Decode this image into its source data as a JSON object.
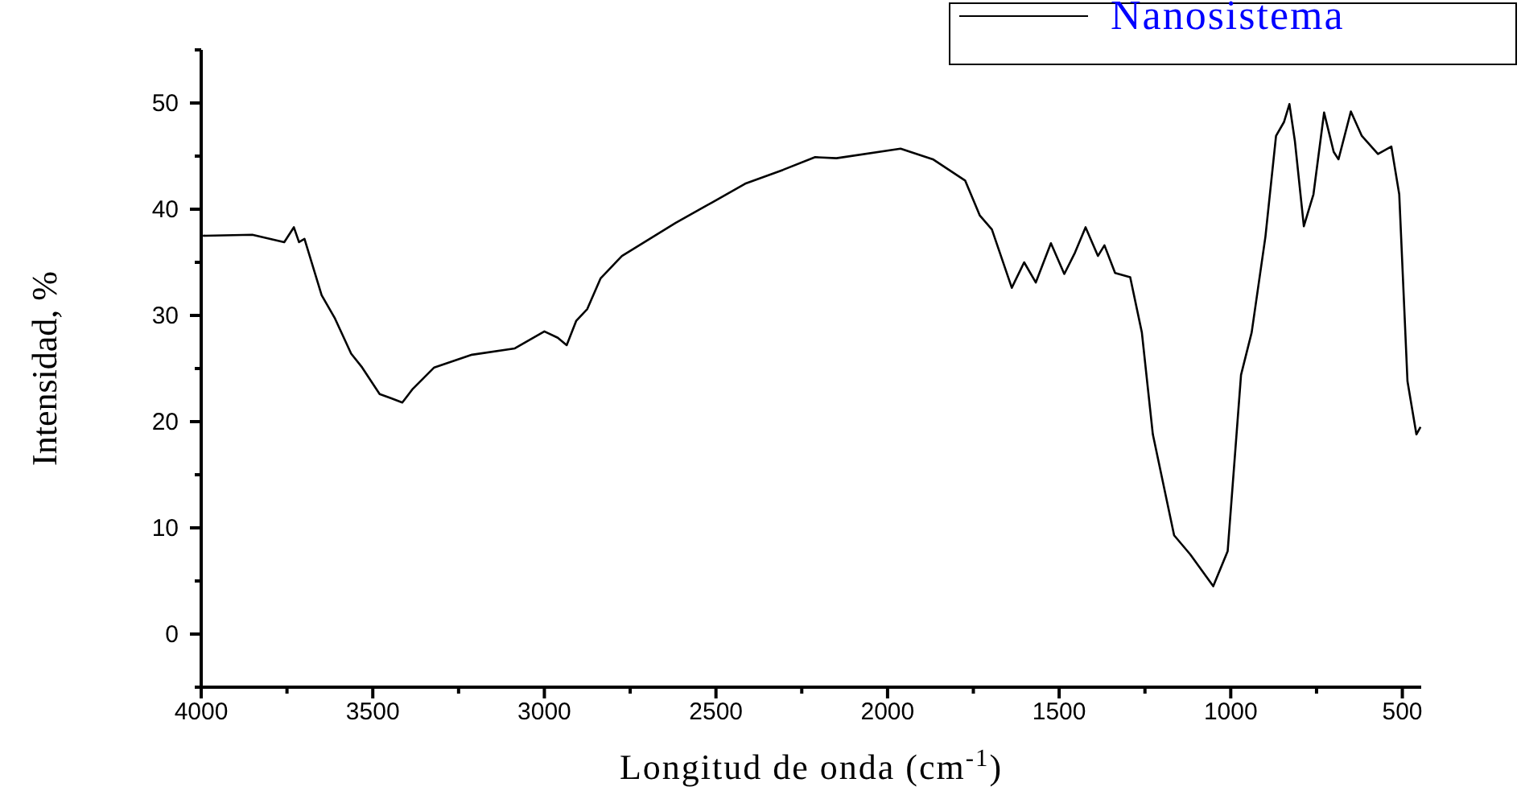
{
  "chart_data": {
    "type": "line",
    "xlabel": "Longitud de onda (cm$^{-1}$)",
    "ylabel": "Intensidad, %",
    "legend": "top right",
    "marker": "none",
    "line_style": "solid",
    "xlim": [
      4000,
      445
    ],
    "ylim": [
      -5,
      55
    ],
    "xticks": [
      4000,
      {
        "value": 3750,
        "label": null
      },
      3500,
      {
        "value": 3250,
        "label": null
      },
      3000,
      {
        "value": 2750,
        "label": null
      },
      2500,
      {
        "value": 2250,
        "label": null
      },
      2000,
      {
        "value": 1750,
        "label": null
      },
      1500,
      {
        "value": 1250,
        "label": null
      },
      1000,
      {
        "value": 750,
        "label": null
      },
      500
    ],
    "yticks": [
      {
        "value": -5,
        "label": null
      },
      0,
      {
        "value": 5,
        "label": null
      },
      10,
      {
        "value": 15,
        "label": null
      },
      20,
      {
        "value": 25,
        "label": null
      },
      30,
      {
        "value": 35,
        "label": null
      },
      40,
      {
        "value": 45,
        "label": null
      },
      50,
      {
        "value": 55,
        "label": null
      }
    ],
    "series": [
      {
        "name": "Nanosistema",
        "color": "#000000",
        "x": [
          3995,
          3851,
          3758,
          3730,
          3715,
          3699,
          3649,
          3610,
          3563,
          3531,
          3480,
          3446,
          3414,
          3383,
          3321,
          3211,
          3086,
          3000,
          2961,
          2935,
          2907,
          2875,
          2836,
          2774,
          2618,
          2508,
          2415,
          2305,
          2211,
          2149,
          1962,
          1868,
          1774,
          1731,
          1696,
          1638,
          1602,
          1568,
          1524,
          1485,
          1454,
          1423,
          1387,
          1368,
          1337,
          1293,
          1259,
          1227,
          1165,
          1118,
          1051,
          1009,
          970,
          939,
          899,
          868,
          845,
          829,
          813,
          787,
          759,
          728,
          700,
          686,
          650,
          618,
          571,
          532,
          509,
          485,
          459,
          447
        ],
        "values": [
          37.5,
          37.6,
          36.9,
          38.3,
          36.9,
          37.2,
          31.9,
          29.7,
          26.4,
          25.1,
          22.6,
          22.2,
          21.8,
          23.1,
          25.1,
          26.3,
          26.9,
          28.5,
          27.9,
          27.2,
          29.5,
          30.6,
          33.5,
          35.6,
          38.7,
          40.7,
          42.4,
          43.7,
          44.9,
          44.8,
          45.7,
          44.7,
          42.7,
          39.4,
          38.1,
          32.6,
          35.0,
          33.1,
          36.8,
          33.9,
          35.9,
          38.3,
          35.6,
          36.6,
          34.0,
          33.6,
          28.4,
          18.8,
          9.3,
          7.5,
          4.5,
          7.8,
          24.4,
          28.4,
          37.4,
          46.9,
          48.2,
          49.9,
          46.4,
          38.4,
          41.4,
          49.1,
          45.4,
          44.7,
          49.2,
          46.9,
          45.2,
          45.9,
          41.4,
          23.8,
          18.8,
          19.5
        ]
      }
    ]
  }
}
